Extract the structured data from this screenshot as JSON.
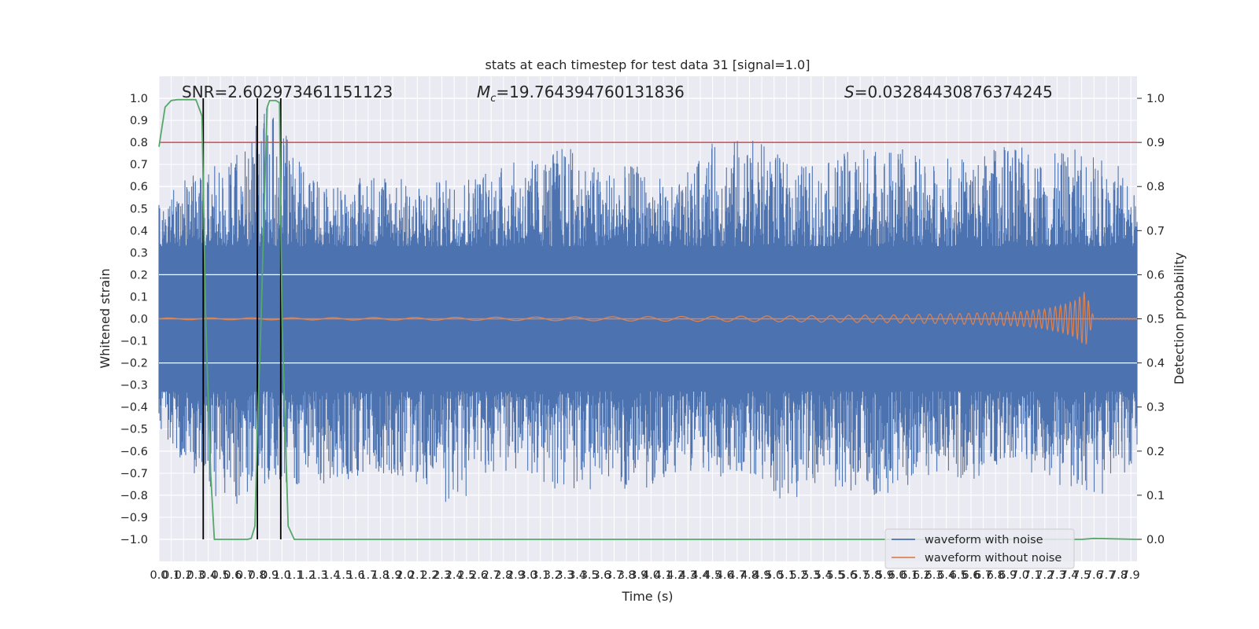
{
  "chart_data": {
    "type": "line",
    "title": "stats at each timestep for test data 31 [signal=1.0]",
    "xlabel": "Time (s)",
    "ylabel": "Whitened strain",
    "ylabel_right": "Detection probability",
    "xlim": [
      0.0,
      7.95
    ],
    "ylim": [
      -1.1,
      1.1
    ],
    "ylim_right": [
      -0.05,
      1.05
    ],
    "x_ticks": [
      "0.0",
      "0.1",
      "0.2",
      "0.3",
      "0.4",
      "0.5",
      "0.6",
      "0.7",
      "0.8",
      "0.9",
      "1.0",
      "1.1",
      "1.2",
      "1.3",
      "1.4",
      "1.5",
      "1.6",
      "1.7",
      "1.8",
      "1.9",
      "2.0",
      "2.1",
      "2.2",
      "2.3",
      "2.4",
      "2.5",
      "2.6",
      "2.7",
      "2.8",
      "2.9",
      "3.0",
      "3.1",
      "3.2",
      "3.3",
      "3.4",
      "3.5",
      "3.6",
      "3.7",
      "3.8",
      "3.9",
      "4.0",
      "4.1",
      "4.2",
      "4.3",
      "4.4",
      "4.5",
      "4.6",
      "4.7",
      "4.8",
      "4.9",
      "5.0",
      "5.1",
      "5.2",
      "5.3",
      "5.4",
      "5.5",
      "5.6",
      "5.7",
      "5.8",
      "5.9",
      "6.0",
      "6.1",
      "6.2",
      "6.3",
      "6.4",
      "6.5",
      "6.6",
      "6.7",
      "6.8",
      "6.9",
      "7.0",
      "7.1",
      "7.2",
      "7.3",
      "7.4",
      "7.5",
      "7.6",
      "7.7",
      "7.8",
      "7.9"
    ],
    "y_ticks_left": [
      "1.0",
      "0.9",
      "0.8",
      "0.7",
      "0.6",
      "0.5",
      "0.4",
      "0.3",
      "0.2",
      "0.1",
      "0.0",
      "−0.1",
      "−0.2",
      "−0.3",
      "−0.4",
      "−0.5",
      "−0.6",
      "−0.7",
      "−0.8",
      "−0.9",
      "−1.0"
    ],
    "y_ticks_right": [
      "1.0",
      "0.9",
      "0.8",
      "0.7",
      "0.6",
      "0.5",
      "0.4",
      "0.3",
      "0.2",
      "0.1",
      "0.0"
    ],
    "annotations": {
      "snr": "SNR=2.602973461151123",
      "mc_symbol": "M",
      "mc_sub": "c",
      "mc_value": "=19.764394760131836",
      "s_symbol": "S",
      "s_value": "=0.03284430876374245"
    },
    "threshold_line": {
      "axis": "right",
      "value": 0.9,
      "color": "#c44e52"
    },
    "vertical_markers": {
      "x": [
        0.36,
        0.8,
        0.99
      ],
      "color": "#000000"
    },
    "series": [
      {
        "name": "waveform with noise",
        "color": "#4c72b0",
        "axis": "left",
        "envelope_x": [
          0.0,
          0.3,
          0.6,
          0.9,
          1.2,
          1.5,
          1.8,
          2.1,
          2.4,
          2.7,
          3.0,
          3.3,
          3.6,
          3.9,
          4.2,
          4.5,
          4.8,
          5.1,
          5.4,
          5.7,
          6.0,
          6.3,
          6.6,
          6.9,
          7.2,
          7.5,
          7.8,
          7.95
        ],
        "envelope_pos": [
          0.55,
          0.68,
          0.72,
          0.98,
          0.65,
          0.6,
          0.7,
          0.6,
          0.65,
          0.7,
          0.72,
          0.8,
          0.68,
          0.7,
          0.6,
          0.8,
          0.84,
          0.72,
          0.7,
          0.8,
          0.78,
          0.72,
          0.75,
          0.8,
          0.74,
          0.78,
          0.7,
          0.55
        ],
        "envelope_neg": [
          -0.5,
          -0.74,
          -0.87,
          -0.75,
          -0.8,
          -0.76,
          -0.7,
          -0.75,
          -0.87,
          -0.7,
          -0.72,
          -0.8,
          -0.76,
          -0.8,
          -0.7,
          -0.72,
          -0.7,
          -0.84,
          -0.75,
          -0.82,
          -0.78,
          -0.72,
          -0.74,
          -0.7,
          -0.75,
          -0.8,
          -0.8,
          -0.6
        ]
      },
      {
        "name": "waveform without noise",
        "color": "#dd8452",
        "axis": "left",
        "envelope_x": [
          0.0,
          1.0,
          2.0,
          3.0,
          4.0,
          5.0,
          6.0,
          6.5,
          7.0,
          7.2,
          7.35,
          7.45,
          7.5,
          7.53,
          7.6,
          7.95
        ],
        "envelope": [
          0.004,
          0.005,
          0.006,
          0.008,
          0.01,
          0.013,
          0.018,
          0.024,
          0.033,
          0.045,
          0.065,
          0.085,
          0.11,
          0.13,
          0.002,
          0.002
        ]
      },
      {
        "name": "detection probability",
        "color": "#55a868",
        "axis": "right",
        "x": [
          0.0,
          0.05,
          0.1,
          0.15,
          0.2,
          0.25,
          0.3,
          0.35,
          0.38,
          0.42,
          0.45,
          0.5,
          0.55,
          0.6,
          0.65,
          0.7,
          0.72,
          0.75,
          0.78,
          0.8,
          0.83,
          0.86,
          0.88,
          0.9,
          0.95,
          0.98,
          1.0,
          1.05,
          1.1,
          1.5,
          2.0,
          3.0,
          4.0,
          5.0,
          6.0,
          7.0,
          7.5,
          7.6,
          7.95
        ],
        "y": [
          0.89,
          0.98,
          0.995,
          0.997,
          0.997,
          0.997,
          0.997,
          0.96,
          0.5,
          0.15,
          0.0,
          0.0,
          0.0,
          0.0,
          0.0,
          0.0,
          0.0,
          0.002,
          0.03,
          0.25,
          0.5,
          0.8,
          0.98,
          0.995,
          0.995,
          0.99,
          0.5,
          0.03,
          0.0,
          0.0,
          0.0,
          0.0,
          0.0,
          0.0,
          0.0,
          0.0,
          0.0,
          0.002,
          0.0
        ]
      }
    ],
    "legend": {
      "placement": "lower-right",
      "entries": [
        {
          "label": "waveform with noise",
          "color": "#4c72b0"
        },
        {
          "label": "waveform without noise",
          "color": "#dd8452"
        }
      ]
    },
    "grid": true,
    "background": "#eaeaf2"
  }
}
